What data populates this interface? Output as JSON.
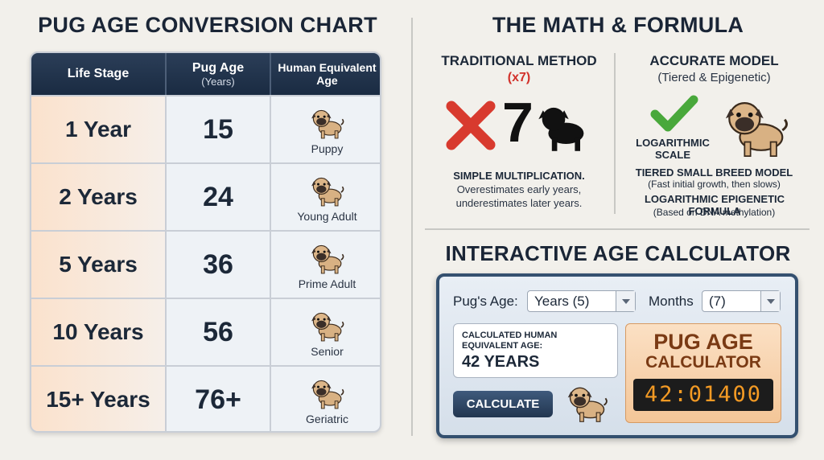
{
  "chart_section": {
    "title": "PUG AGE CONVERSION CHART",
    "table": {
      "header": {
        "stage": "Life Stage",
        "pug_age": "Pug Age",
        "pug_age_unit": "(Years)",
        "human": "Human Equivalent Age"
      },
      "rows": [
        {
          "pug_age": "1 Year",
          "human_age": "15",
          "stage": "Puppy"
        },
        {
          "pug_age": "2 Years",
          "human_age": "24",
          "stage": "Young Adult"
        },
        {
          "pug_age": "5 Years",
          "human_age": "36",
          "stage": "Prime Adult"
        },
        {
          "pug_age": "10 Years",
          "human_age": "56",
          "stage": "Senior"
        },
        {
          "pug_age": "15+ Years",
          "human_age": "76+",
          "stage": "Geriatric"
        }
      ]
    }
  },
  "math_section": {
    "title": "THE MATH & FORMULA",
    "traditional": {
      "title": "TRADITIONAL METHOD",
      "multiplier": "(x7)",
      "big_number": "7",
      "heading": "SIMPLE MULTIPLICATION.",
      "lines": [
        "Overestimates early years,",
        "underestimates later years."
      ]
    },
    "accurate": {
      "title": "ACCURATE MODEL",
      "subtitle": "(Tiered & Epigenetic)",
      "scale_label": [
        "LOGARITHMIC",
        "SCALE"
      ],
      "items": [
        {
          "title": "TIERED SMALL BREED MODEL",
          "note": "(Fast initial growth, then slows)"
        },
        {
          "title": "LOGARITHMIC EPIGENETIC FORMULA",
          "note": "(Based on DNA methylation)"
        }
      ]
    }
  },
  "calculator": {
    "title": "INTERACTIVE AGE CALCULATOR",
    "age_label": "Pug's Age:",
    "years_select": "Years (5)",
    "months_label": "Months",
    "months_select": "(7)",
    "result_label": [
      "CALCULATED HUMAN",
      "EQUIVALENT AGE:"
    ],
    "result": "42 YEARS",
    "button": "CALCULATE",
    "brand": [
      "PUG AGE",
      "CALCULATOR"
    ],
    "display": "42:01400"
  }
}
